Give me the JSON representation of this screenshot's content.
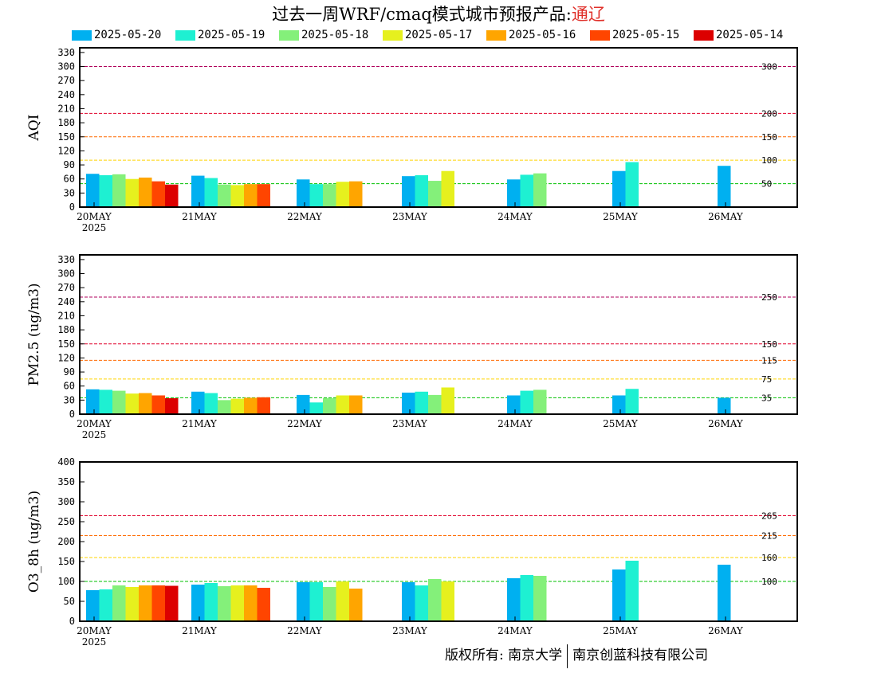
{
  "title": {
    "prefix": "过去一周WRF/cmaq模式城市预报产品:",
    "city": "通辽"
  },
  "legend": [
    {
      "name": "2025-05-20",
      "color": "#00b0f0"
    },
    {
      "name": "2025-05-19",
      "color": "#1ef0d2"
    },
    {
      "name": "2025-05-18",
      "color": "#84f07a"
    },
    {
      "name": "2025-05-17",
      "color": "#e6f01e"
    },
    {
      "name": "2025-05-16",
      "color": "#ffa500"
    },
    {
      "name": "2025-05-15",
      "color": "#ff4500"
    },
    {
      "name": "2025-05-14",
      "color": "#dc0000"
    }
  ],
  "x_ticks": [
    "20MAY",
    "21MAY",
    "22MAY",
    "23MAY",
    "24MAY",
    "25MAY",
    "26MAY"
  ],
  "x_year": "2025",
  "copyright": {
    "left": "版权所有: 南京大学",
    "right": "南京创蓝科技有限公司"
  },
  "chart_data": [
    {
      "type": "bar",
      "ylabel": "AQI",
      "ylim": [
        0,
        340
      ],
      "yticks": [
        0,
        30,
        60,
        90,
        120,
        150,
        180,
        210,
        240,
        270,
        300,
        330
      ],
      "thresholds": [
        {
          "value": 300,
          "label": "300",
          "color": "#b0005c"
        },
        {
          "value": 200,
          "label": "200",
          "color": "#e0002a"
        },
        {
          "value": 150,
          "label": "150",
          "color": "#ff6a00"
        },
        {
          "value": 100,
          "label": "100",
          "color": "#ffd400"
        },
        {
          "value": 50,
          "label": "50",
          "color": "#00c000"
        }
      ],
      "categories": [
        "20MAY",
        "21MAY",
        "22MAY",
        "23MAY",
        "24MAY",
        "25MAY",
        "26MAY"
      ],
      "series": [
        {
          "name": "2025-05-20",
          "values": [
            71,
            67,
            59,
            66,
            59,
            77,
            88
          ]
        },
        {
          "name": "2025-05-19",
          "values": [
            68,
            62,
            49,
            68,
            69,
            96,
            null
          ]
        },
        {
          "name": "2025-05-18",
          "values": [
            70,
            48,
            49,
            56,
            72,
            null,
            null
          ]
        },
        {
          "name": "2025-05-17",
          "values": [
            60,
            47,
            54,
            77,
            null,
            null,
            null
          ]
        },
        {
          "name": "2025-05-16",
          "values": [
            63,
            49,
            55,
            null,
            null,
            null,
            null
          ]
        },
        {
          "name": "2025-05-15",
          "values": [
            55,
            49,
            null,
            null,
            null,
            null,
            null
          ]
        },
        {
          "name": "2025-05-14",
          "values": [
            48,
            null,
            null,
            null,
            null,
            null,
            null
          ]
        }
      ]
    },
    {
      "type": "bar",
      "ylabel": "PM2.5 (ug/m3)",
      "ylim": [
        0,
        340
      ],
      "yticks": [
        0,
        30,
        60,
        90,
        120,
        150,
        180,
        210,
        240,
        270,
        300,
        330
      ],
      "thresholds": [
        {
          "value": 250,
          "label": "250",
          "color": "#b0005c"
        },
        {
          "value": 150,
          "label": "150",
          "color": "#e0002a"
        },
        {
          "value": 115,
          "label": "115",
          "color": "#ff6a00"
        },
        {
          "value": 75,
          "label": "75",
          "color": "#ffd400"
        },
        {
          "value": 35,
          "label": "35",
          "color": "#00c000"
        }
      ],
      "categories": [
        "20MAY",
        "21MAY",
        "22MAY",
        "23MAY",
        "24MAY",
        "25MAY",
        "26MAY"
      ],
      "series": [
        {
          "name": "2025-05-20",
          "values": [
            53,
            48,
            41,
            46,
            40,
            40,
            35
          ]
        },
        {
          "name": "2025-05-19",
          "values": [
            52,
            45,
            25,
            48,
            50,
            54,
            null
          ]
        },
        {
          "name": "2025-05-18",
          "values": [
            50,
            30,
            34,
            41,
            52,
            null,
            null
          ]
        },
        {
          "name": "2025-05-17",
          "values": [
            44,
            33,
            40,
            57,
            null,
            null,
            null
          ]
        },
        {
          "name": "2025-05-16",
          "values": [
            45,
            35,
            40,
            null,
            null,
            null,
            null
          ]
        },
        {
          "name": "2025-05-15",
          "values": [
            40,
            36,
            null,
            null,
            null,
            null,
            null
          ]
        },
        {
          "name": "2025-05-14",
          "values": [
            34,
            null,
            null,
            null,
            null,
            null,
            null
          ]
        }
      ]
    },
    {
      "type": "bar",
      "ylabel": "O3_8h (ug/m3)",
      "ylim": [
        0,
        400
      ],
      "yticks": [
        0,
        50,
        100,
        150,
        200,
        250,
        300,
        350,
        400
      ],
      "thresholds": [
        {
          "value": 265,
          "label": "265",
          "color": "#e0002a"
        },
        {
          "value": 215,
          "label": "215",
          "color": "#ff6a00"
        },
        {
          "value": 160,
          "label": "160",
          "color": "#ffd400"
        },
        {
          "value": 100,
          "label": "100",
          "color": "#00c000"
        }
      ],
      "categories": [
        "20MAY",
        "21MAY",
        "22MAY",
        "23MAY",
        "24MAY",
        "25MAY",
        "26MAY"
      ],
      "series": [
        {
          "name": "2025-05-20",
          "values": [
            78,
            92,
            98,
            98,
            108,
            130,
            142
          ]
        },
        {
          "name": "2025-05-19",
          "values": [
            80,
            96,
            98,
            90,
            116,
            152,
            null
          ]
        },
        {
          "name": "2025-05-18",
          "values": [
            90,
            88,
            86,
            106,
            114,
            null,
            null
          ]
        },
        {
          "name": "2025-05-17",
          "values": [
            86,
            90,
            100,
            100,
            null,
            null,
            null
          ]
        },
        {
          "name": "2025-05-16",
          "values": [
            90,
            90,
            82,
            null,
            null,
            null,
            null
          ]
        },
        {
          "name": "2025-05-15",
          "values": [
            90,
            84,
            null,
            null,
            null,
            null,
            null
          ]
        },
        {
          "name": "2025-05-14",
          "values": [
            89,
            null,
            null,
            null,
            null,
            null,
            null
          ]
        }
      ]
    }
  ]
}
